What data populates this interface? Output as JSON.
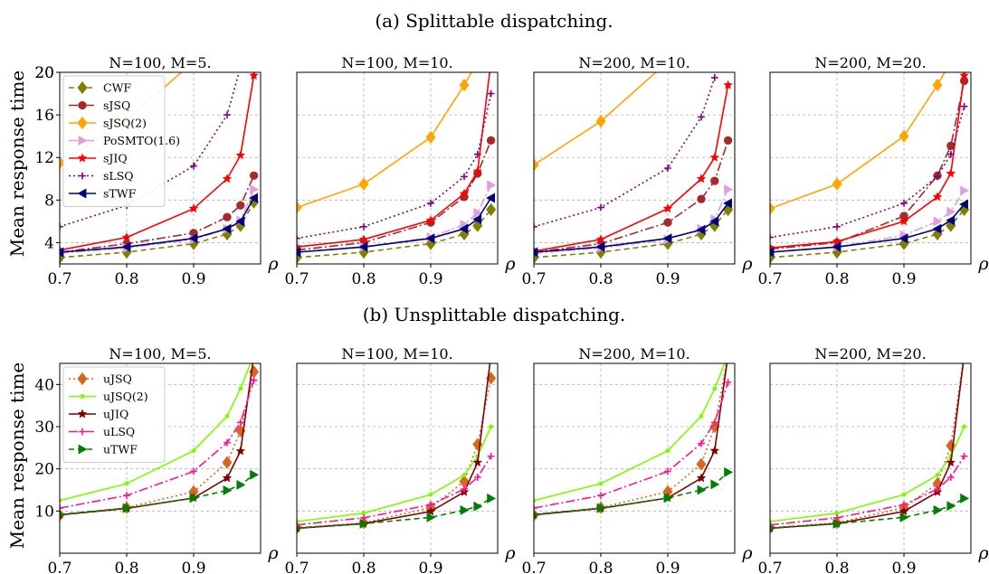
{
  "rows": [
    {
      "title": "(a) Splittable dispatching.",
      "ylabel": "Mean response time",
      "yticks": [
        4,
        8,
        12,
        16,
        20
      ],
      "ylim": [
        2,
        20
      ]
    },
    {
      "title": "(b) Unsplittable dispatching.",
      "ylabel": "Mean response time",
      "yticks": [
        10,
        20,
        30,
        40
      ],
      "ylim": [
        0,
        45
      ]
    }
  ],
  "panel_titles": [
    "N=100, M=5.",
    "N=100, M=10.",
    "N=200, M=10.",
    "N=200, M=20."
  ],
  "xlabel": "ρ",
  "xticks": [
    "0.7",
    "0.8",
    "0.9"
  ],
  "chart_data": [
    {
      "type": "line",
      "title": "N=100, M=5.",
      "row": 0,
      "col": 0,
      "xlabel": "ρ",
      "ylabel": "Mean response time",
      "xlim": [
        0.7,
        1.0
      ],
      "ylim": [
        2,
        20
      ],
      "grid": true,
      "legend_placement": "top-left",
      "series": [
        {
          "name": "CWF",
          "color": "#808000",
          "x": [
            0.7,
            0.8,
            0.9,
            0.95,
            0.97,
            0.99
          ],
          "y": [
            2.6,
            3.1,
            3.9,
            4.8,
            5.6,
            7.8
          ]
        },
        {
          "name": "sJSQ",
          "color": "#a52a2a",
          "x": [
            0.7,
            0.8,
            0.9,
            0.95,
            0.97,
            0.99
          ],
          "y": [
            3.1,
            3.9,
            4.9,
            6.4,
            7.5,
            10.3
          ]
        },
        {
          "name": "sJSQ(2)",
          "color": "#ffa500",
          "x": [
            0.7,
            0.8,
            0.9
          ],
          "y": [
            11.5,
            15.5,
            21
          ]
        },
        {
          "name": "PoSMTO(1.6)",
          "color": "#dda0dd",
          "x": [
            0.7,
            0.8,
            0.9,
            0.95,
            0.97,
            0.99
          ],
          "y": [
            3.0,
            3.5,
            4.3,
            5.3,
            6.1,
            9.0
          ]
        },
        {
          "name": "sJIQ",
          "color": "#ff0000",
          "x": [
            0.7,
            0.8,
            0.9,
            0.95,
            0.97,
            0.99
          ],
          "y": [
            3.3,
            4.5,
            7.2,
            10.0,
            12.2,
            19.7
          ]
        },
        {
          "name": "sLSQ",
          "color": "#800080",
          "x": [
            0.7,
            0.8,
            0.9,
            0.95,
            0.97
          ],
          "y": [
            5.5,
            7.5,
            11.2,
            16.0,
            20.5
          ]
        },
        {
          "name": "sTWF",
          "color": "#000080",
          "x": [
            0.7,
            0.8,
            0.9,
            0.95,
            0.97,
            0.99
          ],
          "y": [
            3.1,
            3.6,
            4.4,
            5.3,
            6.0,
            8.2
          ]
        }
      ]
    },
    {
      "type": "line",
      "title": "N=100, M=10.",
      "row": 0,
      "col": 1,
      "xlim": [
        0.7,
        1.0
      ],
      "ylim": [
        2,
        20
      ],
      "grid": true,
      "series": [
        {
          "name": "CWF",
          "color": "#808000",
          "x": [
            0.7,
            0.8,
            0.9,
            0.95,
            0.97,
            0.99
          ],
          "y": [
            2.6,
            3.1,
            3.9,
            4.8,
            5.6,
            7.1
          ]
        },
        {
          "name": "sJSQ",
          "color": "#a52a2a",
          "x": [
            0.7,
            0.8,
            0.9,
            0.95,
            0.97,
            0.99
          ],
          "y": [
            3.3,
            4.0,
            5.9,
            8.3,
            10.5,
            13.6
          ]
        },
        {
          "name": "sJSQ(2)",
          "color": "#ffa500",
          "x": [
            0.7,
            0.8,
            0.9,
            0.95,
            0.97
          ],
          "y": [
            7.3,
            9.5,
            13.9,
            18.8,
            21
          ]
        },
        {
          "name": "PoSMTO(1.6)",
          "color": "#dda0dd",
          "x": [
            0.7,
            0.8,
            0.9,
            0.95,
            0.97,
            0.99
          ],
          "y": [
            3.1,
            3.6,
            4.5,
            5.7,
            6.8,
            9.4
          ]
        },
        {
          "name": "sJIQ",
          "color": "#ff0000",
          "x": [
            0.7,
            0.8,
            0.9,
            0.95,
            0.97,
            0.99
          ],
          "y": [
            3.6,
            4.3,
            6.1,
            8.6,
            10.7,
            21
          ]
        },
        {
          "name": "sLSQ",
          "color": "#800080",
          "x": [
            0.7,
            0.8,
            0.9,
            0.95,
            0.97,
            0.99
          ],
          "y": [
            4.4,
            5.5,
            7.7,
            10.2,
            12.3,
            18.0
          ]
        },
        {
          "name": "sTWF",
          "color": "#000080",
          "x": [
            0.7,
            0.8,
            0.9,
            0.95,
            0.97,
            0.99
          ],
          "y": [
            3.1,
            3.6,
            4.4,
            5.3,
            6.2,
            8.2
          ]
        }
      ]
    },
    {
      "type": "line",
      "title": "N=200, M=10.",
      "row": 0,
      "col": 2,
      "xlim": [
        0.7,
        1.0
      ],
      "ylim": [
        2,
        20
      ],
      "grid": true,
      "series": [
        {
          "name": "CWF",
          "color": "#808000",
          "x": [
            0.7,
            0.8,
            0.9,
            0.95,
            0.97,
            0.99
          ],
          "y": [
            2.6,
            3.1,
            3.9,
            4.8,
            5.6,
            7.1
          ]
        },
        {
          "name": "sJSQ",
          "color": "#a52a2a",
          "x": [
            0.7,
            0.8,
            0.9,
            0.95,
            0.97,
            0.99
          ],
          "y": [
            3.1,
            3.9,
            5.9,
            8.1,
            9.8,
            13.6
          ]
        },
        {
          "name": "sJSQ(2)",
          "color": "#ffa500",
          "x": [
            0.7,
            0.8,
            0.9
          ],
          "y": [
            11.3,
            15.4,
            21
          ]
        },
        {
          "name": "PoSMTO(1.6)",
          "color": "#dda0dd",
          "x": [
            0.7,
            0.8,
            0.9,
            0.95,
            0.97,
            0.99
          ],
          "y": [
            3.0,
            3.5,
            4.3,
            5.3,
            6.2,
            9.0
          ]
        },
        {
          "name": "sJIQ",
          "color": "#ff0000",
          "x": [
            0.7,
            0.8,
            0.9,
            0.95,
            0.97,
            0.99
          ],
          "y": [
            3.2,
            4.3,
            7.2,
            10.0,
            12.0,
            18.8
          ]
        },
        {
          "name": "sLSQ",
          "color": "#800080",
          "x": [
            0.7,
            0.8,
            0.9,
            0.95,
            0.97
          ],
          "y": [
            5.5,
            7.3,
            11.0,
            15.8,
            19.5
          ]
        },
        {
          "name": "sTWF",
          "color": "#000080",
          "x": [
            0.7,
            0.8,
            0.9,
            0.95,
            0.97,
            0.99
          ],
          "y": [
            3.1,
            3.6,
            4.4,
            5.2,
            6.0,
            7.7
          ]
        }
      ]
    },
    {
      "type": "line",
      "title": "N=200, M=20.",
      "row": 0,
      "col": 3,
      "xlim": [
        0.7,
        1.0
      ],
      "ylim": [
        2,
        20
      ],
      "grid": true,
      "series": [
        {
          "name": "CWF",
          "color": "#808000",
          "x": [
            0.7,
            0.8,
            0.9,
            0.95,
            0.97,
            0.99
          ],
          "y": [
            2.6,
            3.1,
            3.9,
            4.8,
            5.6,
            7.1
          ]
        },
        {
          "name": "sJSQ",
          "color": "#a52a2a",
          "x": [
            0.7,
            0.8,
            0.9,
            0.95,
            0.97,
            0.99
          ],
          "y": [
            3.4,
            4.0,
            6.5,
            10.3,
            13.1,
            19.2
          ]
        },
        {
          "name": "sJSQ(2)",
          "color": "#ffa500",
          "x": [
            0.7,
            0.8,
            0.9,
            0.95,
            0.97
          ],
          "y": [
            7.2,
            9.5,
            14.0,
            18.8,
            21
          ]
        },
        {
          "name": "PoSMTO(1.6)",
          "color": "#dda0dd",
          "x": [
            0.7,
            0.8,
            0.9,
            0.95,
            0.97,
            0.99
          ],
          "y": [
            3.1,
            3.6,
            4.7,
            6.0,
            6.9,
            8.9
          ]
        },
        {
          "name": "sJIQ",
          "color": "#ff0000",
          "x": [
            0.7,
            0.8,
            0.9,
            0.95,
            0.97,
            0.99
          ],
          "y": [
            3.5,
            4.1,
            6.0,
            8.3,
            10.5,
            19.7
          ]
        },
        {
          "name": "sLSQ",
          "color": "#800080",
          "x": [
            0.7,
            0.8,
            0.9,
            0.95,
            0.97,
            0.99
          ],
          "y": [
            4.5,
            5.5,
            7.7,
            10.2,
            12.3,
            16.8
          ]
        },
        {
          "name": "sTWF",
          "color": "#000080",
          "x": [
            0.7,
            0.8,
            0.9,
            0.95,
            0.97,
            0.99
          ],
          "y": [
            3.1,
            3.6,
            4.4,
            5.3,
            6.1,
            7.6
          ]
        }
      ]
    },
    {
      "type": "line",
      "title": "N=100, M=5.",
      "row": 1,
      "col": 0,
      "xlabel": "ρ",
      "ylabel": "Mean response time",
      "xlim": [
        0.7,
        1.0
      ],
      "ylim": [
        0,
        45
      ],
      "grid": true,
      "legend_placement": "top-left",
      "series": [
        {
          "name": "uJSQ",
          "color": "#d2691e",
          "x": [
            0.7,
            0.8,
            0.9,
            0.95,
            0.97,
            0.99
          ],
          "y": [
            9.0,
            10.8,
            14.6,
            21.5,
            29.0,
            43.0
          ]
        },
        {
          "name": "uJSQ(2)",
          "color": "#7cfc00",
          "x": [
            0.7,
            0.8,
            0.9,
            0.95,
            0.97,
            0.99
          ],
          "y": [
            12.5,
            16.5,
            24.3,
            32.5,
            39.0,
            47
          ]
        },
        {
          "name": "uJIQ",
          "color": "#800000",
          "x": [
            0.7,
            0.8,
            0.9,
            0.95,
            0.97,
            0.99
          ],
          "y": [
            9.1,
            10.6,
            13.1,
            17.8,
            24.2,
            47
          ]
        },
        {
          "name": "uLSQ",
          "color": "#ff1493",
          "x": [
            0.7,
            0.8,
            0.9,
            0.95,
            0.97,
            0.99
          ],
          "y": [
            10.7,
            13.7,
            19.4,
            26.2,
            31.0,
            41.0
          ]
        },
        {
          "name": "uTWF",
          "color": "#008000",
          "x": [
            0.7,
            0.8,
            0.9,
            0.95,
            0.97,
            0.99
          ],
          "y": [
            9.2,
            10.7,
            13.1,
            14.9,
            16.2,
            18.6
          ]
        }
      ]
    },
    {
      "type": "line",
      "title": "N=100, M=10.",
      "row": 1,
      "col": 1,
      "xlim": [
        0.7,
        1.0
      ],
      "ylim": [
        0,
        45
      ],
      "grid": true,
      "series": [
        {
          "name": "uJSQ",
          "color": "#d2691e",
          "x": [
            0.7,
            0.8,
            0.9,
            0.95,
            0.97,
            0.99
          ],
          "y": [
            6.0,
            7.2,
            10.8,
            17.0,
            25.8,
            41.5
          ]
        },
        {
          "name": "uJSQ(2)",
          "color": "#7cfc00",
          "x": [
            0.7,
            0.8,
            0.9,
            0.95,
            0.97,
            0.99
          ],
          "y": [
            7.5,
            9.5,
            13.9,
            18.5,
            23.0,
            30.0
          ]
        },
        {
          "name": "uJIQ",
          "color": "#800000",
          "x": [
            0.7,
            0.8,
            0.9,
            0.95,
            0.97,
            0.99
          ],
          "y": [
            5.9,
            7.0,
            9.9,
            14.5,
            21.5,
            47
          ]
        },
        {
          "name": "uLSQ",
          "color": "#ff1493",
          "x": [
            0.7,
            0.8,
            0.9,
            0.95,
            0.97,
            0.99
          ],
          "y": [
            6.7,
            8.4,
            11.5,
            15.2,
            18.0,
            23.0
          ]
        },
        {
          "name": "uTWF",
          "color": "#008000",
          "x": [
            0.7,
            0.8,
            0.9,
            0.95,
            0.97,
            0.99
          ],
          "y": [
            6.0,
            7.0,
            8.5,
            10.2,
            11.1,
            13.0
          ]
        }
      ]
    },
    {
      "type": "line",
      "title": "N=200, M=10.",
      "row": 1,
      "col": 2,
      "xlim": [
        0.7,
        1.0
      ],
      "ylim": [
        0,
        45
      ],
      "grid": true,
      "series": [
        {
          "name": "uJSQ",
          "color": "#d2691e",
          "x": [
            0.7,
            0.8,
            0.9,
            0.95,
            0.97,
            0.99
          ],
          "y": [
            9.0,
            10.8,
            14.6,
            21.1,
            30.0,
            47
          ]
        },
        {
          "name": "uJSQ(2)",
          "color": "#7cfc00",
          "x": [
            0.7,
            0.8,
            0.9,
            0.95,
            0.97,
            0.99
          ],
          "y": [
            12.5,
            16.5,
            24.3,
            32.5,
            39.0,
            47
          ]
        },
        {
          "name": "uJIQ",
          "color": "#800000",
          "x": [
            0.7,
            0.8,
            0.9,
            0.95,
            0.97,
            0.99
          ],
          "y": [
            9.1,
            10.6,
            13.1,
            17.8,
            24.3,
            47
          ]
        },
        {
          "name": "uLSQ",
          "color": "#ff1493",
          "x": [
            0.7,
            0.8,
            0.9,
            0.95,
            0.97,
            0.99
          ],
          "y": [
            10.7,
            13.7,
            19.4,
            26.0,
            31.0,
            40.5
          ]
        },
        {
          "name": "uTWF",
          "color": "#008000",
          "x": [
            0.7,
            0.8,
            0.9,
            0.95,
            0.97,
            0.99
          ],
          "y": [
            9.2,
            10.7,
            13.1,
            15.0,
            16.3,
            19.2
          ]
        }
      ]
    },
    {
      "type": "line",
      "title": "N=200, M=20.",
      "row": 1,
      "col": 3,
      "xlim": [
        0.7,
        1.0
      ],
      "ylim": [
        0,
        45
      ],
      "grid": true,
      "series": [
        {
          "name": "uJSQ",
          "color": "#d2691e",
          "x": [
            0.7,
            0.8,
            0.9,
            0.95,
            0.97,
            0.99
          ],
          "y": [
            6.0,
            7.2,
            10.8,
            16.5,
            25.5,
            47
          ]
        },
        {
          "name": "uJSQ(2)",
          "color": "#7cfc00",
          "x": [
            0.7,
            0.8,
            0.9,
            0.95,
            0.97,
            0.99
          ],
          "y": [
            7.5,
            9.5,
            13.9,
            18.5,
            23.0,
            30.0
          ]
        },
        {
          "name": "uJIQ",
          "color": "#800000",
          "x": [
            0.7,
            0.8,
            0.9,
            0.95,
            0.97,
            0.99
          ],
          "y": [
            5.9,
            7.0,
            9.9,
            14.5,
            21.5,
            47
          ]
        },
        {
          "name": "uLSQ",
          "color": "#ff1493",
          "x": [
            0.7,
            0.8,
            0.9,
            0.95,
            0.97,
            0.99
          ],
          "y": [
            6.7,
            8.4,
            11.5,
            15.2,
            18.0,
            23.0
          ]
        },
        {
          "name": "uTWF",
          "color": "#008000",
          "x": [
            0.7,
            0.8,
            0.9,
            0.95,
            0.97,
            0.99
          ],
          "y": [
            6.0,
            7.0,
            8.5,
            10.2,
            11.2,
            13.0
          ]
        }
      ]
    }
  ]
}
